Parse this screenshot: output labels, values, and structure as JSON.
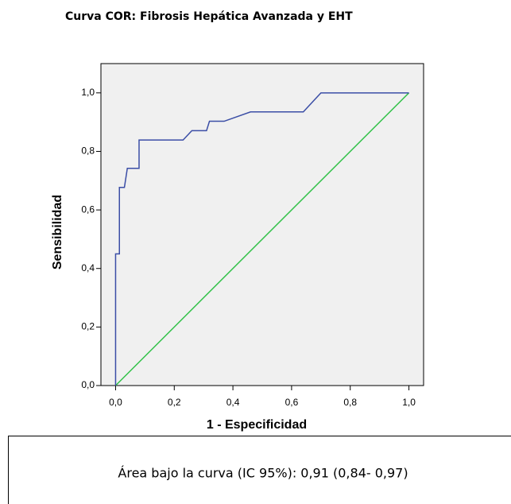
{
  "chart_data": {
    "type": "line",
    "title": "Curva COR: Fibrosis Hepática Avanzada y EHT",
    "x_label": "1 - Especificidad",
    "y_label": "Sensibilidad",
    "annotation": "Área bajo la curva (IC 95%): 0,91 (0,84- 0,97)",
    "xlim": [
      -0.05,
      1.05
    ],
    "ylim": [
      0,
      1.1
    ],
    "xticks": [
      {
        "value": 0,
        "label": "0,0"
      },
      {
        "value": 0.2,
        "label": "0,2"
      },
      {
        "value": 0.4,
        "label": "0,4"
      },
      {
        "value": 0.6,
        "label": "0,6"
      },
      {
        "value": 0.8,
        "label": "0,8"
      },
      {
        "value": 1,
        "label": "1,0"
      }
    ],
    "yticks": [
      {
        "value": 0,
        "label": "0,0"
      },
      {
        "value": 0.2,
        "label": "0,2"
      },
      {
        "value": 0.4,
        "label": "0,4"
      },
      {
        "value": 0.6,
        "label": "0,6"
      },
      {
        "value": 0.8,
        "label": "0,8"
      },
      {
        "value": 1,
        "label": "1,0"
      }
    ],
    "series": [
      {
        "color": "#3b4ea6",
        "x": [
          0,
          0,
          0.013,
          0.013,
          0.03,
          0.04,
          0.08,
          0.08,
          0.23,
          0.26,
          0.31,
          0.32,
          0.37,
          0.46,
          0.64,
          0.7,
          1
        ],
        "values": [
          0,
          0.45,
          0.45,
          0.677,
          0.677,
          0.742,
          0.742,
          0.839,
          0.839,
          0.871,
          0.871,
          0.903,
          0.903,
          0.935,
          0.935,
          1,
          1
        ]
      },
      {
        "color": "#33c24a",
        "x": [
          0,
          1
        ],
        "values": [
          0,
          1
        ]
      }
    ]
  }
}
